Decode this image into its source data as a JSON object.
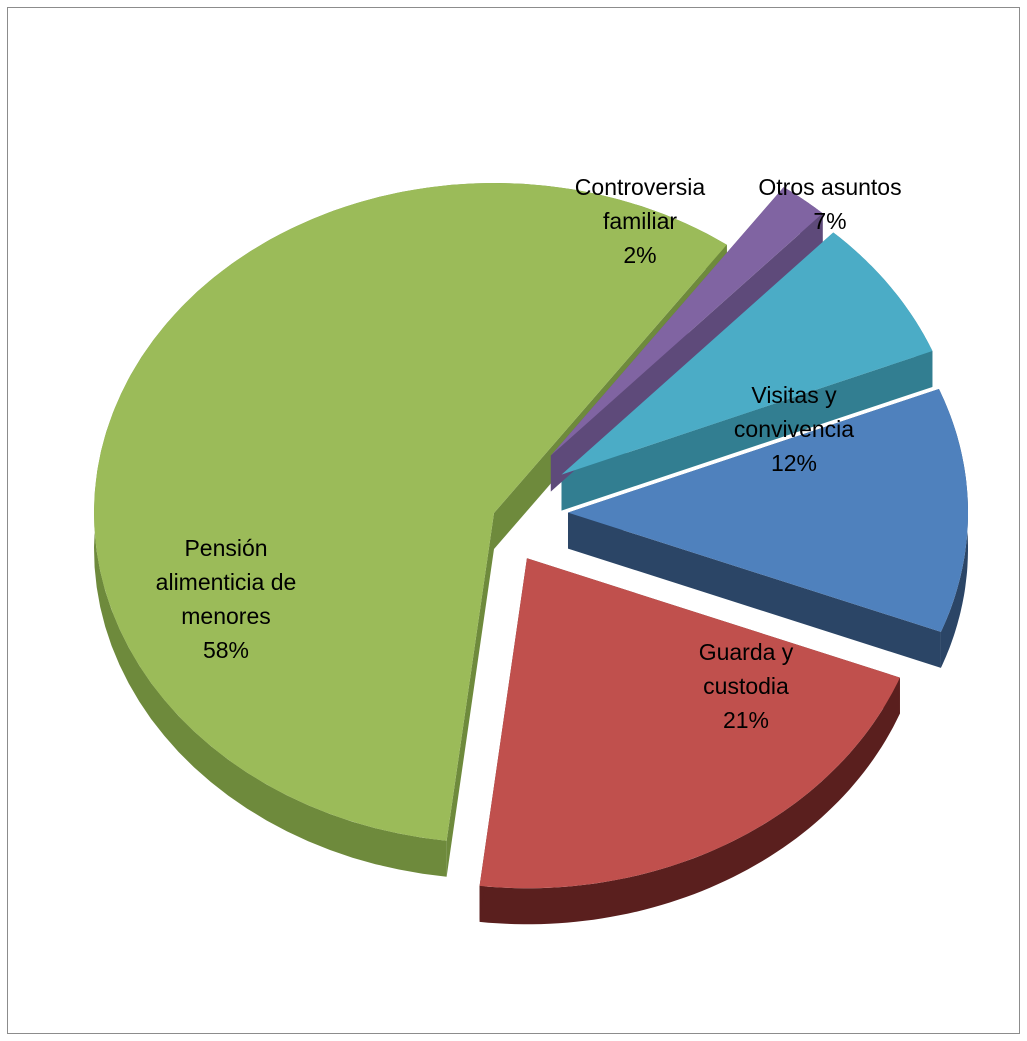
{
  "chart_data": {
    "type": "pie",
    "style": "3d-exploded",
    "legend": "none",
    "categories": [
      "Pensión alimenticia de menores",
      "Guarda y custodia",
      "Visitas y convivencia",
      "Otros asuntos",
      "Controversia familiar"
    ],
    "values": [
      58,
      21,
      12,
      7,
      2
    ],
    "data_labels": [
      {
        "lines": [
          "Pensión",
          "alimenticia de",
          "menores"
        ],
        "pct": "58%"
      },
      {
        "lines": [
          "Guarda y",
          "custodia"
        ],
        "pct": "21%"
      },
      {
        "lines": [
          "Visitas y",
          "convivencia"
        ],
        "pct": "12%"
      },
      {
        "lines": [
          "Otros asuntos"
        ],
        "pct": "7%"
      },
      {
        "lines": [
          "Controversia",
          "familiar"
        ],
        "pct": "2%"
      }
    ],
    "colors": [
      "#9BBB59",
      "#C0504D",
      "#4F81BD",
      "#4BACC6",
      "#8064A2"
    ],
    "side_colors": [
      "#6E8A3C",
      "#5A1F1E",
      "#2B4566",
      "#327E91",
      "#5E4A7A"
    ]
  }
}
